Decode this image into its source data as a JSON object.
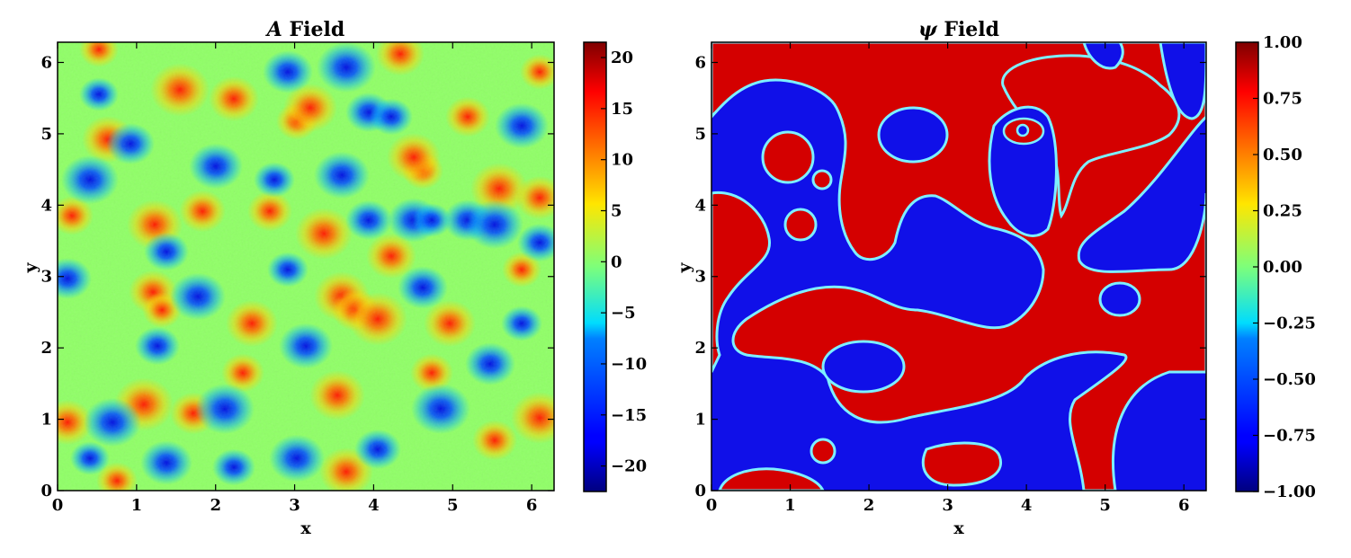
{
  "chart_data": [
    {
      "type": "heatmap",
      "title_symbol": "A",
      "title_rest": " Field",
      "xlabel": "x",
      "ylabel": "y",
      "xlim": [
        0,
        6.2832
      ],
      "ylim": [
        0,
        6.2832
      ],
      "xticks": [
        0,
        1,
        2,
        3,
        4,
        5,
        6
      ],
      "yticks": [
        0,
        1,
        2,
        3,
        4,
        5,
        6
      ],
      "colormap": "jet",
      "colorbar": {
        "min": -22.5,
        "max": 21.5,
        "ticks": [
          20,
          15,
          10,
          5,
          0,
          -5,
          -10,
          -15,
          -20
        ],
        "tick_labels": [
          "20",
          "15",
          "10",
          "5",
          "0",
          "−5",
          "−10",
          "−15",
          "−20"
        ]
      },
      "grid": false
    },
    {
      "type": "heatmap",
      "title_symbol": "ψ",
      "title_rest": " Field",
      "xlabel": "x",
      "ylabel": "y",
      "xlim": [
        0,
        6.2832
      ],
      "ylim": [
        0,
        6.2832
      ],
      "xticks": [
        0,
        1,
        2,
        3,
        4,
        5,
        6
      ],
      "yticks": [
        0,
        1,
        2,
        3,
        4,
        5,
        6
      ],
      "colormap": "jet",
      "colorbar": {
        "min": -1.0,
        "max": 1.0,
        "ticks": [
          1.0,
          0.75,
          0.5,
          0.25,
          0.0,
          -0.25,
          -0.5,
          -0.75,
          -1.0
        ],
        "tick_labels": [
          "1.00",
          "0.75",
          "0.50",
          "0.25",
          "0.00",
          "−0.25",
          "−0.50",
          "−0.75",
          "−1.00"
        ]
      },
      "grid": false
    }
  ]
}
